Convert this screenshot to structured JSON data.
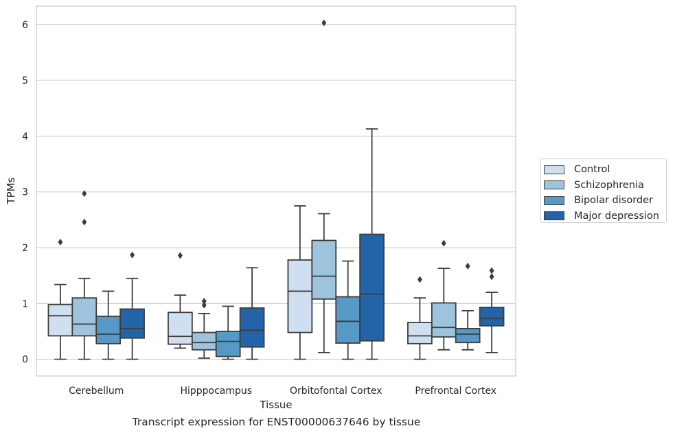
{
  "chart_data": {
    "type": "box",
    "xlabel": "Tissue",
    "ylabel": "TPMs",
    "caption": "Transcript expression for ENST00000637646 by tissue",
    "categories": [
      "Cerebellum",
      "Hipppocampus",
      "Orbitofontal Cortex",
      "Prefrontal Cortex"
    ],
    "ylim": [
      -0.3,
      6.33
    ],
    "yticks": [
      "0",
      "1",
      "2",
      "3",
      "4",
      "5",
      "6"
    ],
    "grid": "horizontal",
    "legend_position": "right",
    "series": [
      {
        "name": "Control",
        "color": "#d0dfef",
        "boxes": [
          {
            "whislo": 0.0,
            "q1": 0.42,
            "med": 0.78,
            "q3": 0.98,
            "whishi": 1.34,
            "fliers": [
              2.1
            ]
          },
          {
            "whislo": 0.2,
            "q1": 0.27,
            "med": 0.41,
            "q3": 0.84,
            "whishi": 1.15,
            "fliers": [
              1.86
            ]
          },
          {
            "whislo": 0.0,
            "q1": 0.48,
            "med": 1.22,
            "q3": 1.78,
            "whishi": 2.75,
            "fliers": []
          },
          {
            "whislo": 0.0,
            "q1": 0.28,
            "med": 0.42,
            "q3": 0.66,
            "whishi": 1.1,
            "fliers": [
              1.43
            ]
          }
        ]
      },
      {
        "name": "Schizophrenia",
        "color": "#9ec3dc",
        "boxes": [
          {
            "whislo": 0.0,
            "q1": 0.42,
            "med": 0.63,
            "q3": 1.1,
            "whishi": 1.45,
            "fliers": [
              2.46,
              2.97
            ]
          },
          {
            "whislo": 0.02,
            "q1": 0.17,
            "med": 0.3,
            "q3": 0.48,
            "whishi": 0.82,
            "fliers": [
              0.97,
              1.04
            ]
          },
          {
            "whislo": 0.12,
            "q1": 1.08,
            "med": 1.49,
            "q3": 2.13,
            "whishi": 2.61,
            "fliers": [
              6.03
            ]
          },
          {
            "whislo": 0.17,
            "q1": 0.4,
            "med": 0.57,
            "q3": 1.01,
            "whishi": 1.63,
            "fliers": [
              2.08
            ]
          }
        ]
      },
      {
        "name": "Bipolar disorder",
        "color": "#5799c6",
        "boxes": [
          {
            "whislo": 0.0,
            "q1": 0.28,
            "med": 0.45,
            "q3": 0.77,
            "whishi": 1.22,
            "fliers": []
          },
          {
            "whislo": 0.0,
            "q1": 0.05,
            "med": 0.32,
            "q3": 0.5,
            "whishi": 0.95,
            "fliers": []
          },
          {
            "whislo": 0.0,
            "q1": 0.29,
            "med": 0.68,
            "q3": 1.12,
            "whishi": 1.76,
            "fliers": []
          },
          {
            "whislo": 0.17,
            "q1": 0.3,
            "med": 0.45,
            "q3": 0.55,
            "whishi": 0.87,
            "fliers": [
              1.67
            ]
          }
        ]
      },
      {
        "name": "Major depression",
        "color": "#2264a7",
        "boxes": [
          {
            "whislo": 0.0,
            "q1": 0.38,
            "med": 0.55,
            "q3": 0.9,
            "whishi": 1.45,
            "fliers": [
              1.87
            ]
          },
          {
            "whislo": 0.0,
            "q1": 0.22,
            "med": 0.52,
            "q3": 0.92,
            "whishi": 1.64,
            "fliers": []
          },
          {
            "whislo": 0.0,
            "q1": 0.33,
            "med": 1.17,
            "q3": 2.24,
            "whishi": 4.13,
            "fliers": []
          },
          {
            "whislo": 0.12,
            "q1": 0.6,
            "med": 0.73,
            "q3": 0.93,
            "whishi": 1.2,
            "fliers": [
              1.48,
              1.59
            ]
          }
        ]
      }
    ]
  }
}
